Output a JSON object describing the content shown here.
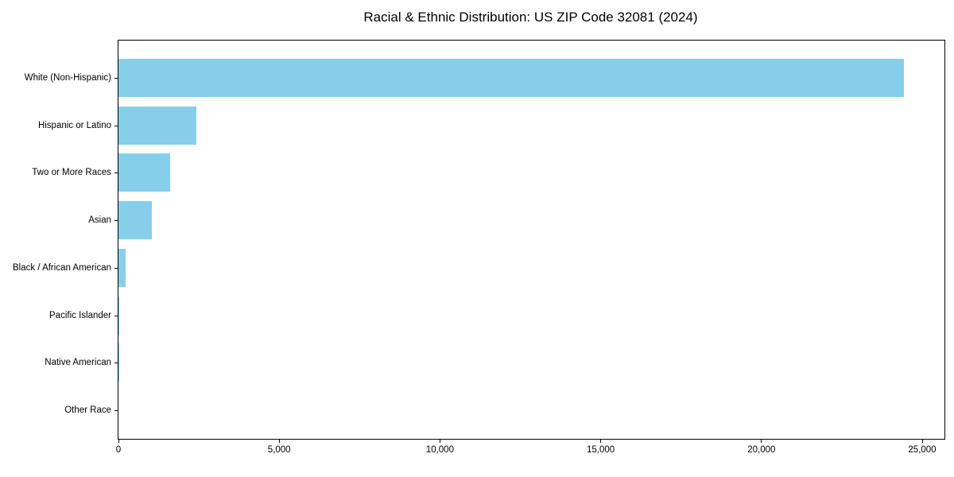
{
  "chart_data": {
    "type": "bar",
    "orientation": "horizontal",
    "title": "Racial & Ethnic Distribution: US ZIP Code 32081 (2024)",
    "categories": [
      "White (Non-Hispanic)",
      "Hispanic or Latino",
      "Two or More Races",
      "Asian",
      "Black / African American",
      "Pacific Islander",
      "Native American",
      "Other Race"
    ],
    "values": [
      24430,
      2420,
      1610,
      1040,
      220,
      25,
      10,
      0
    ],
    "xlabel": "",
    "ylabel": "",
    "xlim": [
      0,
      25690
    ],
    "x_ticks": [
      0,
      5000,
      10000,
      15000,
      20000,
      25000
    ],
    "x_tick_labels": [
      "0",
      "5,000",
      "10,000",
      "15,000",
      "20,000",
      "25,000"
    ],
    "bar_color": "#87ceeb",
    "grid": false,
    "legend": null
  }
}
